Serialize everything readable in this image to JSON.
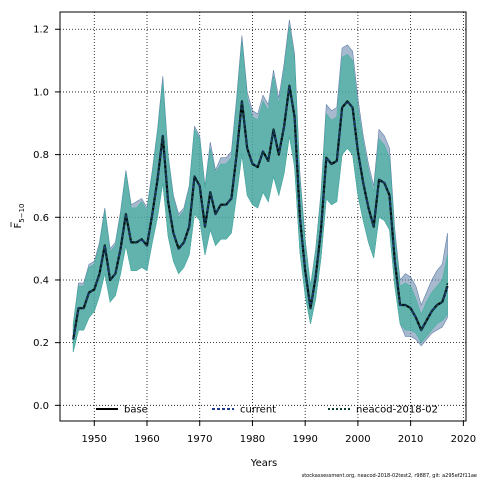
{
  "chart_data": {
    "type": "line",
    "xlabel": "Years",
    "ylabel_main": "F",
    "ylabel_sub": "5−10",
    "xlim": [
      1943.5,
      2020.5
    ],
    "ylim": [
      -0.05,
      1.255
    ],
    "xticks": [
      1950,
      1960,
      1970,
      1980,
      1990,
      2000,
      2010,
      2020
    ],
    "yticks": [
      0.0,
      0.2,
      0.4,
      0.6,
      0.8,
      1.0,
      1.2
    ],
    "ytick_labels": [
      "0.0",
      "0.2",
      "0.4",
      "0.6",
      "0.8",
      "1.0",
      "1.2"
    ],
    "grid": true,
    "legend_placement": "bottom-inside",
    "footnote": "stockassessment.org, neacod-2018-02test2, r9887, git: a295ef2f11ae",
    "x": [
      1946,
      1947,
      1948,
      1949,
      1950,
      1951,
      1952,
      1953,
      1954,
      1955,
      1956,
      1957,
      1958,
      1959,
      1960,
      1961,
      1962,
      1963,
      1964,
      1965,
      1966,
      1967,
      1968,
      1969,
      1970,
      1971,
      1972,
      1973,
      1974,
      1975,
      1976,
      1977,
      1978,
      1979,
      1980,
      1981,
      1982,
      1983,
      1984,
      1985,
      1986,
      1987,
      1988,
      1989,
      1990,
      1991,
      1992,
      1993,
      1994,
      1995,
      1996,
      1997,
      1998,
      1999,
      2000,
      2001,
      2002,
      2003,
      2004,
      2005,
      2006,
      2007,
      2008,
      2009,
      2010,
      2011,
      2012,
      2013,
      2014,
      2015,
      2016,
      2017
    ],
    "series": [
      {
        "name": "base",
        "color": "#000000",
        "dash": "solid",
        "values": [
          0.21,
          0.31,
          0.31,
          0.36,
          0.37,
          0.42,
          0.51,
          0.4,
          0.42,
          0.5,
          0.61,
          0.52,
          0.52,
          0.53,
          0.51,
          0.61,
          0.72,
          0.86,
          0.65,
          0.55,
          0.5,
          0.52,
          0.57,
          0.73,
          0.7,
          0.57,
          0.68,
          0.61,
          0.64,
          0.64,
          0.66,
          0.8,
          0.97,
          0.82,
          0.77,
          0.76,
          0.81,
          0.78,
          0.88,
          0.8,
          0.89,
          1.02,
          0.92,
          0.6,
          0.43,
          0.31,
          0.41,
          0.56,
          0.79,
          0.77,
          0.78,
          0.95,
          0.97,
          0.95,
          0.81,
          0.71,
          0.63,
          0.57,
          0.72,
          0.71,
          0.67,
          0.46,
          0.32,
          0.32,
          0.31,
          0.28,
          0.24,
          0.27,
          0.3,
          0.32,
          0.33,
          0.38
        ]
      },
      {
        "name": "current",
        "color": "#1f3a8a",
        "dash": "3,2",
        "values": [
          0.21,
          0.31,
          0.31,
          0.36,
          0.37,
          0.42,
          0.51,
          0.4,
          0.42,
          0.5,
          0.61,
          0.52,
          0.52,
          0.53,
          0.51,
          0.61,
          0.72,
          0.86,
          0.65,
          0.55,
          0.5,
          0.52,
          0.57,
          0.73,
          0.7,
          0.57,
          0.68,
          0.61,
          0.64,
          0.64,
          0.66,
          0.8,
          0.97,
          0.82,
          0.77,
          0.76,
          0.81,
          0.78,
          0.88,
          0.8,
          0.89,
          1.02,
          0.92,
          0.6,
          0.43,
          0.31,
          0.41,
          0.56,
          0.79,
          0.77,
          0.78,
          0.95,
          0.97,
          0.95,
          0.81,
          0.71,
          0.63,
          0.57,
          0.72,
          0.71,
          0.67,
          0.46,
          0.32,
          0.32,
          0.31,
          0.28,
          0.24,
          0.27,
          0.3,
          0.32,
          0.33,
          0.38
        ]
      },
      {
        "name": "neacod-2018-02",
        "color": "#0b3d2e",
        "dash": "2,2",
        "values": [
          0.21,
          0.31,
          0.31,
          0.36,
          0.37,
          0.42,
          0.51,
          0.4,
          0.42,
          0.5,
          0.61,
          0.52,
          0.52,
          0.53,
          0.51,
          0.61,
          0.72,
          0.86,
          0.65,
          0.55,
          0.5,
          0.52,
          0.57,
          0.73,
          0.7,
          0.57,
          0.68,
          0.61,
          0.64,
          0.64,
          0.66,
          0.8,
          0.97,
          0.82,
          0.77,
          0.76,
          0.81,
          0.78,
          0.88,
          0.8,
          0.89,
          1.02,
          0.92,
          0.6,
          0.43,
          0.31,
          0.41,
          0.56,
          0.79,
          0.77,
          0.78,
          0.95,
          0.97,
          0.95,
          0.81,
          0.71,
          0.63,
          0.57,
          0.72,
          0.71,
          0.67,
          0.46,
          0.32,
          0.32,
          0.31,
          0.28,
          0.24,
          0.27,
          0.3,
          0.32,
          0.33,
          0.39
        ]
      }
    ],
    "bands": [
      {
        "name": "current-ci",
        "color": "#5f7fa8",
        "opacity": 0.55,
        "lower": [
          0.17,
          0.24,
          0.24,
          0.28,
          0.3,
          0.35,
          0.42,
          0.33,
          0.35,
          0.42,
          0.51,
          0.43,
          0.43,
          0.44,
          0.43,
          0.52,
          0.6,
          0.71,
          0.54,
          0.46,
          0.42,
          0.44,
          0.48,
          0.61,
          0.59,
          0.48,
          0.56,
          0.51,
          0.53,
          0.53,
          0.55,
          0.67,
          0.8,
          0.67,
          0.64,
          0.63,
          0.68,
          0.65,
          0.73,
          0.67,
          0.74,
          0.86,
          0.76,
          0.49,
          0.35,
          0.26,
          0.34,
          0.47,
          0.66,
          0.64,
          0.65,
          0.8,
          0.82,
          0.8,
          0.67,
          0.59,
          0.52,
          0.47,
          0.6,
          0.59,
          0.56,
          0.38,
          0.26,
          0.22,
          0.22,
          0.21,
          0.19,
          0.21,
          0.23,
          0.24,
          0.25,
          0.28
        ],
        "upper": [
          0.26,
          0.39,
          0.39,
          0.45,
          0.46,
          0.52,
          0.63,
          0.5,
          0.52,
          0.62,
          0.75,
          0.64,
          0.65,
          0.66,
          0.63,
          0.75,
          0.88,
          1.05,
          0.8,
          0.67,
          0.61,
          0.63,
          0.7,
          0.89,
          0.86,
          0.7,
          0.84,
          0.75,
          0.79,
          0.79,
          0.81,
          0.98,
          1.18,
          1.0,
          0.94,
          0.93,
          0.99,
          0.96,
          1.07,
          0.98,
          1.09,
          1.23,
          1.12,
          0.74,
          0.53,
          0.38,
          0.5,
          0.68,
          0.96,
          0.94,
          0.95,
          1.14,
          1.15,
          1.13,
          0.98,
          0.86,
          0.77,
          0.7,
          0.88,
          0.86,
          0.82,
          0.56,
          0.4,
          0.42,
          0.41,
          0.38,
          0.32,
          0.36,
          0.4,
          0.43,
          0.45,
          0.55
        ]
      },
      {
        "name": "neacod-2018-02-ci",
        "color": "#45b0a0",
        "opacity": 0.7,
        "lower": [
          0.17,
          0.24,
          0.24,
          0.28,
          0.3,
          0.35,
          0.42,
          0.33,
          0.35,
          0.42,
          0.51,
          0.43,
          0.43,
          0.44,
          0.43,
          0.52,
          0.6,
          0.71,
          0.54,
          0.46,
          0.42,
          0.44,
          0.48,
          0.61,
          0.59,
          0.48,
          0.56,
          0.51,
          0.53,
          0.53,
          0.55,
          0.67,
          0.8,
          0.67,
          0.64,
          0.63,
          0.68,
          0.65,
          0.73,
          0.67,
          0.74,
          0.86,
          0.76,
          0.49,
          0.35,
          0.26,
          0.34,
          0.47,
          0.66,
          0.64,
          0.65,
          0.8,
          0.82,
          0.8,
          0.67,
          0.59,
          0.52,
          0.47,
          0.6,
          0.59,
          0.56,
          0.38,
          0.26,
          0.24,
          0.24,
          0.23,
          0.2,
          0.22,
          0.24,
          0.26,
          0.27,
          0.29
        ],
        "upper": [
          0.26,
          0.38,
          0.38,
          0.44,
          0.45,
          0.51,
          0.62,
          0.49,
          0.51,
          0.61,
          0.74,
          0.63,
          0.63,
          0.65,
          0.62,
          0.74,
          0.87,
          1.03,
          0.79,
          0.66,
          0.6,
          0.62,
          0.69,
          0.88,
          0.85,
          0.69,
          0.82,
          0.74,
          0.77,
          0.77,
          0.79,
          0.96,
          1.16,
          0.98,
          0.92,
          0.91,
          0.97,
          0.94,
          1.05,
          0.96,
          1.07,
          1.21,
          1.1,
          0.72,
          0.52,
          0.38,
          0.49,
          0.67,
          0.93,
          0.91,
          0.92,
          1.11,
          1.12,
          1.1,
          0.95,
          0.84,
          0.75,
          0.68,
          0.85,
          0.83,
          0.79,
          0.54,
          0.38,
          0.39,
          0.38,
          0.34,
          0.29,
          0.33,
          0.36,
          0.38,
          0.4,
          0.48
        ]
      }
    ]
  }
}
